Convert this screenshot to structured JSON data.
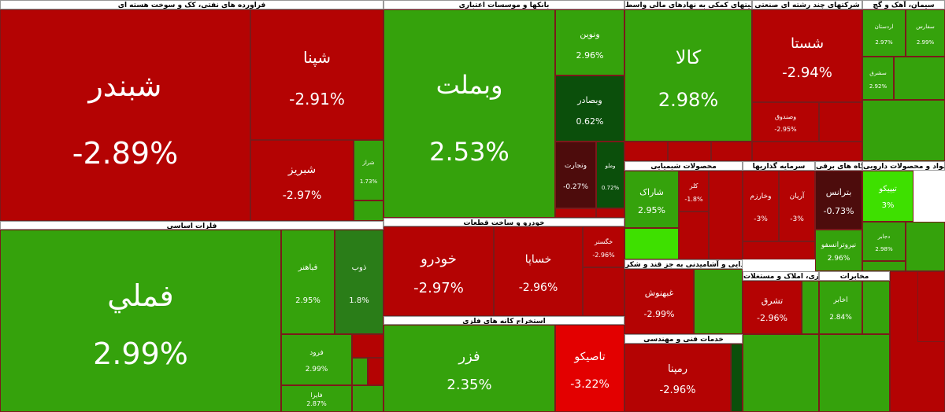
{
  "sectors": [
    {
      "title": "فراورده های نفتی، کک و سوخت هسته ای",
      "tiles": [
        {
          "label": "شبندر",
          "change": "-2.89%"
        },
        {
          "label": "شپنا",
          "change": "-2.91%"
        },
        {
          "label": "شبریز",
          "change": "-2.97%"
        },
        {
          "label": "شراز",
          "change": "1.73%"
        }
      ]
    },
    {
      "title": "فلزات اساسی",
      "tiles": [
        {
          "label": "فملي",
          "change": "2.99%"
        },
        {
          "label": "فباهنر",
          "change": "2.95%"
        },
        {
          "label": "ذوب",
          "change": "1.8%"
        },
        {
          "label": "فرود",
          "change": "2.99%"
        },
        {
          "label": "فایرا",
          "change": "2.87%"
        }
      ]
    },
    {
      "title": "بانکها و موسسات اعتباری",
      "tiles": [
        {
          "label": "وبملت",
          "change": "2.53%"
        },
        {
          "label": "ونوین",
          "change": "2.96%"
        },
        {
          "label": "وبصادر",
          "change": "0.62%"
        },
        {
          "label": "وتجارت",
          "change": "-0.27%"
        },
        {
          "label": "وملو",
          "change": "0.72%"
        }
      ]
    },
    {
      "title": "خودرو و ساخت قطعات",
      "tiles": [
        {
          "label": "خودرو",
          "change": "-2.97%"
        },
        {
          "label": "خساپا",
          "change": "-2.96%"
        },
        {
          "label": "خگستر",
          "change": "-2.96%"
        }
      ]
    },
    {
      "title": "استخراج کانه های فلزی",
      "tiles": [
        {
          "label": "فزر",
          "change": "2.35%"
        },
        {
          "label": "تاصیکو",
          "change": "-3.22%"
        }
      ]
    },
    {
      "title": "فعالیتهای کمکی به نهادهای مالی واسط",
      "tiles": [
        {
          "label": "کالا",
          "change": "2.98%"
        }
      ]
    },
    {
      "title": "شرکتهای چند رشته ای صنعتی",
      "tiles": [
        {
          "label": "شستا",
          "change": "-2.94%"
        },
        {
          "label": "وصندوق",
          "change": "-2.95%"
        }
      ]
    },
    {
      "title": "سیمان، آهک و گچ",
      "tiles": [
        {
          "label": "اردستان",
          "change": "2.97%"
        },
        {
          "label": "سفارس",
          "change": "2.99%"
        },
        {
          "label": "سشرق",
          "change": "2.92%"
        }
      ]
    },
    {
      "title": "محصولات شیمیایی",
      "tiles": [
        {
          "label": "شاراک",
          "change": "2.95%"
        },
        {
          "label": "کلر",
          "change": "-1.8%"
        }
      ]
    },
    {
      "title": "سرمایه گذاریها",
      "tiles": [
        {
          "label": "وخارزم",
          "change": "-3%"
        },
        {
          "label": "آریان",
          "change": "-3%"
        }
      ]
    },
    {
      "title": "ماشین آلات و دستگاه های برقی",
      "tiles": [
        {
          "label": "بترانس",
          "change": "-0.73%"
        },
        {
          "label": "نیروترانسفو",
          "change": "2.96%"
        }
      ]
    },
    {
      "title": "مواد و محصولات دارویی",
      "tiles": [
        {
          "label": "تیپیکو",
          "change": "3%"
        },
        {
          "label": "دجابر",
          "change": "2.98%"
        }
      ]
    },
    {
      "title": "محصولات غذایی و آشامیدنی به جز قند و شکر",
      "tiles": [
        {
          "label": "غبهنوش",
          "change": "-2.99%"
        }
      ]
    },
    {
      "title": "خدمات فنی و مهندسی",
      "tiles": [
        {
          "label": "رمپنا",
          "change": "-2.96%"
        }
      ]
    },
    {
      "title": "انبوه سازی، املاک و مستغلات",
      "tiles": [
        {
          "label": "تشرق",
          "change": "-2.96%"
        }
      ]
    },
    {
      "title": "مخابرات",
      "tiles": [
        {
          "label": "اخابر",
          "change": "2.84%"
        }
      ]
    }
  ]
}
